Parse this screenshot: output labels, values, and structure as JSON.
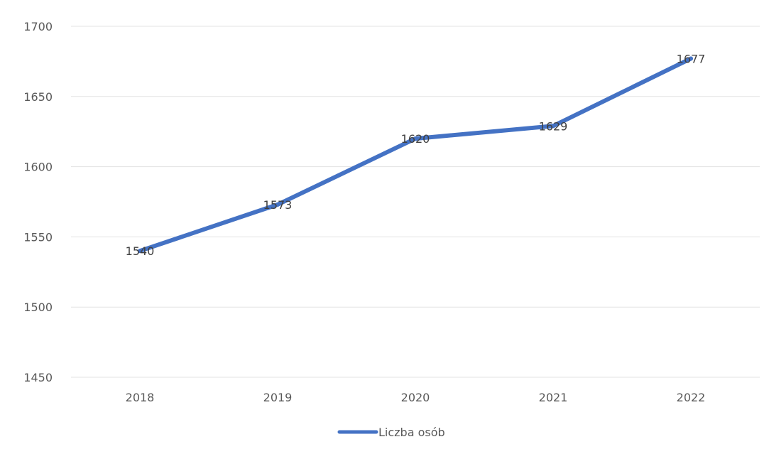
{
  "chart_data": {
    "type": "line",
    "categories": [
      "2018",
      "2019",
      "2020",
      "2021",
      "2022"
    ],
    "series": [
      {
        "name": "Liczba osób",
        "values": [
          1540,
          1573,
          1620,
          1629,
          1677
        ],
        "color": "#4472c4"
      }
    ],
    "ylim": [
      1450,
      1700
    ],
    "yticks": [
      "1450",
      "1500",
      "1550",
      "1600",
      "1650",
      "1700"
    ],
    "grid": true,
    "legend": "bottom",
    "data_labels": [
      "1540",
      "1573",
      "1620",
      "1629",
      "1677"
    ]
  }
}
